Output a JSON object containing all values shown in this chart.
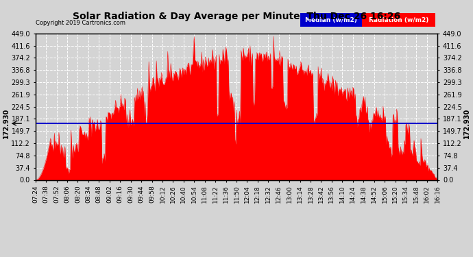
{
  "title": "Solar Radiation & Day Average per Minute  Thu Dec 26 16:26",
  "copyright": "Copyright 2019 Cartronics.com",
  "median_value": 172.93,
  "ylim": [
    0,
    449.0
  ],
  "yticks": [
    0.0,
    37.4,
    74.8,
    112.2,
    149.7,
    187.1,
    224.5,
    261.9,
    299.3,
    336.8,
    374.2,
    411.6,
    449.0
  ],
  "background_color": "#d4d4d4",
  "plot_bg_color": "#d4d4d4",
  "radiation_color": "#ff0000",
  "median_color": "#0000cc",
  "grid_color": "#ffffff",
  "title_color": "#000000",
  "legend_median_bg": "#0000cc",
  "legend_radiation_bg": "#ff0000",
  "xtick_labels": [
    "07:24",
    "07:38",
    "07:52",
    "08:06",
    "08:20",
    "08:34",
    "08:48",
    "09:02",
    "09:16",
    "09:30",
    "09:44",
    "09:58",
    "10:12",
    "10:26",
    "10:40",
    "10:54",
    "11:08",
    "11:22",
    "11:36",
    "11:50",
    "12:04",
    "12:18",
    "12:32",
    "12:46",
    "13:00",
    "13:14",
    "13:28",
    "13:42",
    "13:56",
    "14:10",
    "14:24",
    "14:38",
    "14:52",
    "15:06",
    "15:20",
    "15:34",
    "15:48",
    "16:02",
    "16:16"
  ]
}
